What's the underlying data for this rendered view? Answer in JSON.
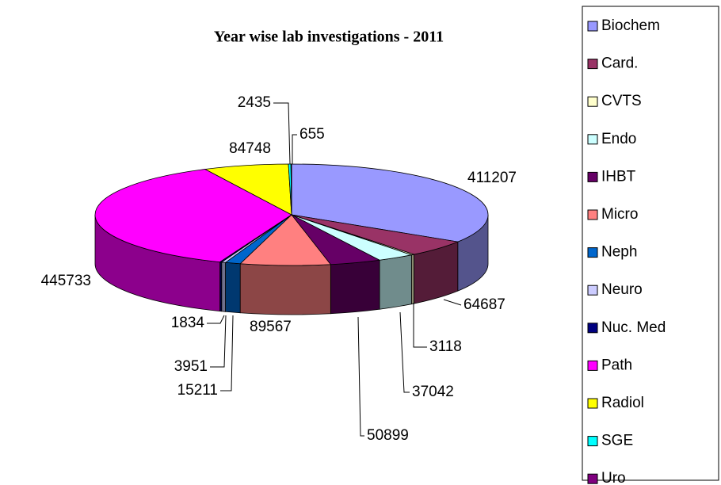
{
  "chart_data": {
    "type": "pie3d",
    "title": "Year wise lab investigations - 2011",
    "categories": [
      "Biochem",
      "Card.",
      "CVTS",
      "Endo",
      "IHBT",
      "Micro",
      "Neph",
      "Neuro",
      "Nuc. Med",
      "Path",
      "Radiol",
      "SGE",
      "Uro"
    ],
    "values": [
      411207,
      64687,
      3118,
      37042,
      50899,
      89567,
      15211,
      3951,
      1834,
      445733,
      84748,
      2435,
      655
    ],
    "colors": [
      "#9999ff",
      "#993366",
      "#ffffcc",
      "#ccffff",
      "#660066",
      "#ff8080",
      "#0066cc",
      "#ccccff",
      "#000080",
      "#ff00ff",
      "#ffff00",
      "#00ffff",
      "#800080"
    ],
    "legend": "right"
  }
}
